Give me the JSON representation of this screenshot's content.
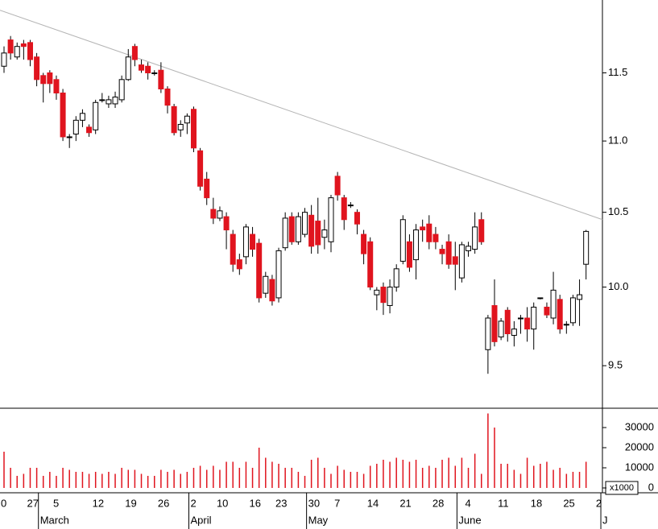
{
  "chart_data": {
    "type": "candlestick",
    "log_scale": true,
    "ylim": [
      9.24,
      12.06
    ],
    "yticks": [
      {
        "value": 11.5,
        "label": "11.5"
      },
      {
        "value": 11.0,
        "label": "11.0"
      },
      {
        "value": 10.5,
        "label": "10.5"
      },
      {
        "value": 10.0,
        "label": "10.0"
      },
      {
        "value": 9.5,
        "label": "9.5"
      }
    ],
    "up_color": "#ffffff",
    "down_color": "#e0141e",
    "open": [
      11.55,
      11.75,
      11.62,
      11.72,
      11.73,
      11.62,
      11.48,
      11.5,
      11.45,
      11.35,
      11.03,
      11.05,
      11.15,
      11.1,
      11.08,
      11.3,
      11.27,
      11.27,
      11.3,
      11.45,
      11.7,
      11.56,
      11.55,
      11.5,
      11.52,
      11.38,
      11.25,
      11.08,
      11.13,
      11.23,
      10.93,
      10.73,
      10.52,
      10.46,
      10.47,
      10.35,
      10.18,
      10.2,
      10.35,
      10.29,
      9.96,
      10.05,
      9.93,
      10.26,
      10.47,
      10.3,
      10.35,
      10.48,
      10.44,
      10.33,
      10.3,
      10.75,
      10.6,
      10.55,
      10.5,
      10.35,
      10.3,
      9.95,
      10.0,
      9.88,
      10.0,
      10.17,
      10.3,
      10.18,
      10.4,
      10.42,
      10.35,
      10.25,
      10.3,
      10.2,
      10.06,
      10.24,
      10.25,
      10.45,
      9.6,
      9.88,
      9.68,
      9.85,
      9.69,
      9.8,
      9.8,
      9.73,
      9.93,
      9.87,
      9.8,
      9.92,
      9.76,
      9.77,
      9.92,
      10.15
    ],
    "high": [
      11.7,
      11.78,
      11.73,
      11.75,
      11.75,
      11.65,
      11.5,
      11.52,
      11.48,
      11.38,
      11.05,
      11.18,
      11.23,
      11.12,
      11.3,
      11.35,
      11.33,
      11.36,
      11.48,
      11.68,
      11.72,
      11.6,
      11.58,
      11.52,
      11.58,
      11.4,
      11.27,
      11.15,
      11.2,
      11.25,
      10.95,
      10.78,
      10.6,
      10.54,
      10.5,
      10.38,
      10.22,
      10.42,
      10.4,
      10.32,
      10.1,
      10.08,
      10.26,
      10.5,
      10.5,
      10.5,
      10.53,
      10.55,
      10.6,
      10.45,
      10.62,
      10.78,
      10.62,
      10.57,
      10.52,
      10.38,
      10.33,
      10.0,
      10.03,
      10.05,
      10.15,
      10.48,
      10.35,
      10.42,
      10.45,
      10.48,
      10.4,
      10.28,
      10.35,
      10.3,
      10.3,
      10.3,
      10.5,
      10.5,
      9.82,
      10.05,
      9.8,
      9.87,
      9.78,
      9.82,
      9.87,
      9.9,
      9.93,
      9.9,
      10.1,
      9.95,
      9.78,
      9.95,
      10.05,
      10.38
    ],
    "low": [
      11.5,
      11.6,
      11.6,
      11.6,
      11.55,
      11.4,
      11.28,
      11.35,
      11.3,
      11.0,
      10.95,
      11.0,
      11.1,
      11.03,
      11.05,
      11.28,
      11.24,
      11.24,
      11.28,
      11.44,
      11.55,
      11.5,
      11.45,
      11.48,
      11.35,
      11.2,
      11.04,
      11.03,
      11.05,
      10.92,
      10.65,
      10.55,
      10.42,
      10.44,
      10.25,
      10.1,
      10.08,
      10.15,
      10.2,
      9.9,
      9.93,
      9.88,
      9.9,
      10.24,
      10.28,
      10.28,
      10.33,
      10.22,
      10.22,
      10.25,
      10.23,
      10.58,
      10.38,
      10.53,
      10.35,
      10.15,
      9.98,
      9.85,
      9.82,
      9.83,
      9.97,
      10.15,
      10.1,
      10.05,
      10.3,
      10.25,
      10.25,
      10.15,
      10.12,
      9.98,
      10.03,
      10.2,
      10.22,
      10.28,
      9.45,
      9.62,
      9.66,
      9.65,
      9.62,
      9.7,
      9.65,
      9.6,
      9.92,
      9.8,
      9.76,
      9.7,
      9.7,
      9.75,
      9.75,
      10.05
    ],
    "close": [
      11.65,
      11.65,
      11.7,
      11.7,
      11.6,
      11.45,
      11.42,
      11.42,
      11.35,
      11.03,
      11.03,
      11.15,
      11.2,
      11.06,
      11.28,
      11.3,
      11.3,
      11.32,
      11.45,
      11.62,
      11.6,
      11.52,
      11.5,
      11.5,
      11.38,
      11.26,
      11.06,
      11.12,
      11.18,
      10.95,
      10.68,
      10.6,
      10.46,
      10.51,
      10.38,
      10.15,
      10.12,
      10.4,
      10.25,
      9.93,
      10.07,
      9.91,
      10.24,
      10.46,
      10.3,
      10.47,
      10.5,
      10.27,
      10.28,
      10.38,
      10.6,
      10.62,
      10.45,
      10.55,
      10.42,
      10.22,
      10.0,
      9.98,
      9.9,
      10.0,
      10.12,
      10.45,
      10.13,
      10.38,
      10.38,
      10.3,
      10.3,
      10.22,
      10.15,
      10.15,
      10.28,
      10.27,
      10.4,
      10.3,
      9.8,
      9.65,
      9.78,
      9.7,
      9.73,
      9.8,
      9.73,
      9.87,
      9.93,
      9.82,
      9.98,
      9.73,
      9.76,
      9.93,
      9.95,
      10.37
    ],
    "trendline": {
      "color": "#b4b4b4",
      "values": [
        11.98,
        10.45
      ]
    },
    "volume": {
      "color": "#e0141e",
      "ylim": [
        -2400,
        39600
      ],
      "yticks": [
        0,
        10000,
        20000,
        30000
      ],
      "unit_label": "x1000",
      "values": [
        18000,
        10000,
        6000,
        7000,
        10000,
        10000,
        6000,
        8000,
        6000,
        10000,
        9000,
        8000,
        8000,
        7000,
        8000,
        7000,
        8000,
        7000,
        10000,
        9000,
        9000,
        7000,
        6000,
        6000,
        9000,
        8000,
        9000,
        7000,
        8000,
        10000,
        11000,
        9000,
        11000,
        9000,
        13000,
        13000,
        10000,
        13000,
        10000,
        20000,
        15000,
        13000,
        12000,
        10000,
        10000,
        8000,
        6000,
        14000,
        15000,
        10000,
        7000,
        11000,
        9000,
        8000,
        8000,
        7000,
        11000,
        12000,
        14000,
        13000,
        15000,
        14000,
        13000,
        14000,
        10000,
        11000,
        10000,
        14000,
        15000,
        11000,
        15000,
        10000,
        17000,
        7000,
        37000,
        30000,
        12000,
        12000,
        9000,
        7000,
        15000,
        11000,
        12000,
        13000,
        9000,
        10000,
        7000,
        8000,
        8000,
        13000
      ]
    },
    "x_labels": [
      {
        "label": "0",
        "index": 0
      },
      {
        "label": "27",
        "index": 4
      },
      {
        "label": "5",
        "index": 8
      },
      {
        "label": "12",
        "index": 14
      },
      {
        "label": "19",
        "index": 19
      },
      {
        "label": "26",
        "index": 24
      },
      {
        "label": "2",
        "index": 29
      },
      {
        "label": "10",
        "index": 33
      },
      {
        "label": "16",
        "index": 38
      },
      {
        "label": "23",
        "index": 42
      },
      {
        "label": "30",
        "index": 47
      },
      {
        "label": "7",
        "index": 51
      },
      {
        "label": "14",
        "index": 56
      },
      {
        "label": "21",
        "index": 61
      },
      {
        "label": "28",
        "index": 66
      },
      {
        "label": "4",
        "index": 71
      },
      {
        "label": "11",
        "index": 76
      },
      {
        "label": "18",
        "index": 81
      },
      {
        "label": "25",
        "index": 86
      },
      {
        "label": "2",
        "index": 91
      }
    ],
    "months": [
      {
        "label": "March",
        "index": 6
      },
      {
        "label": "April",
        "index": 29
      },
      {
        "label": "May",
        "index": 47
      },
      {
        "label": "June",
        "index": 70
      },
      {
        "label": "J",
        "index": 92
      }
    ]
  }
}
